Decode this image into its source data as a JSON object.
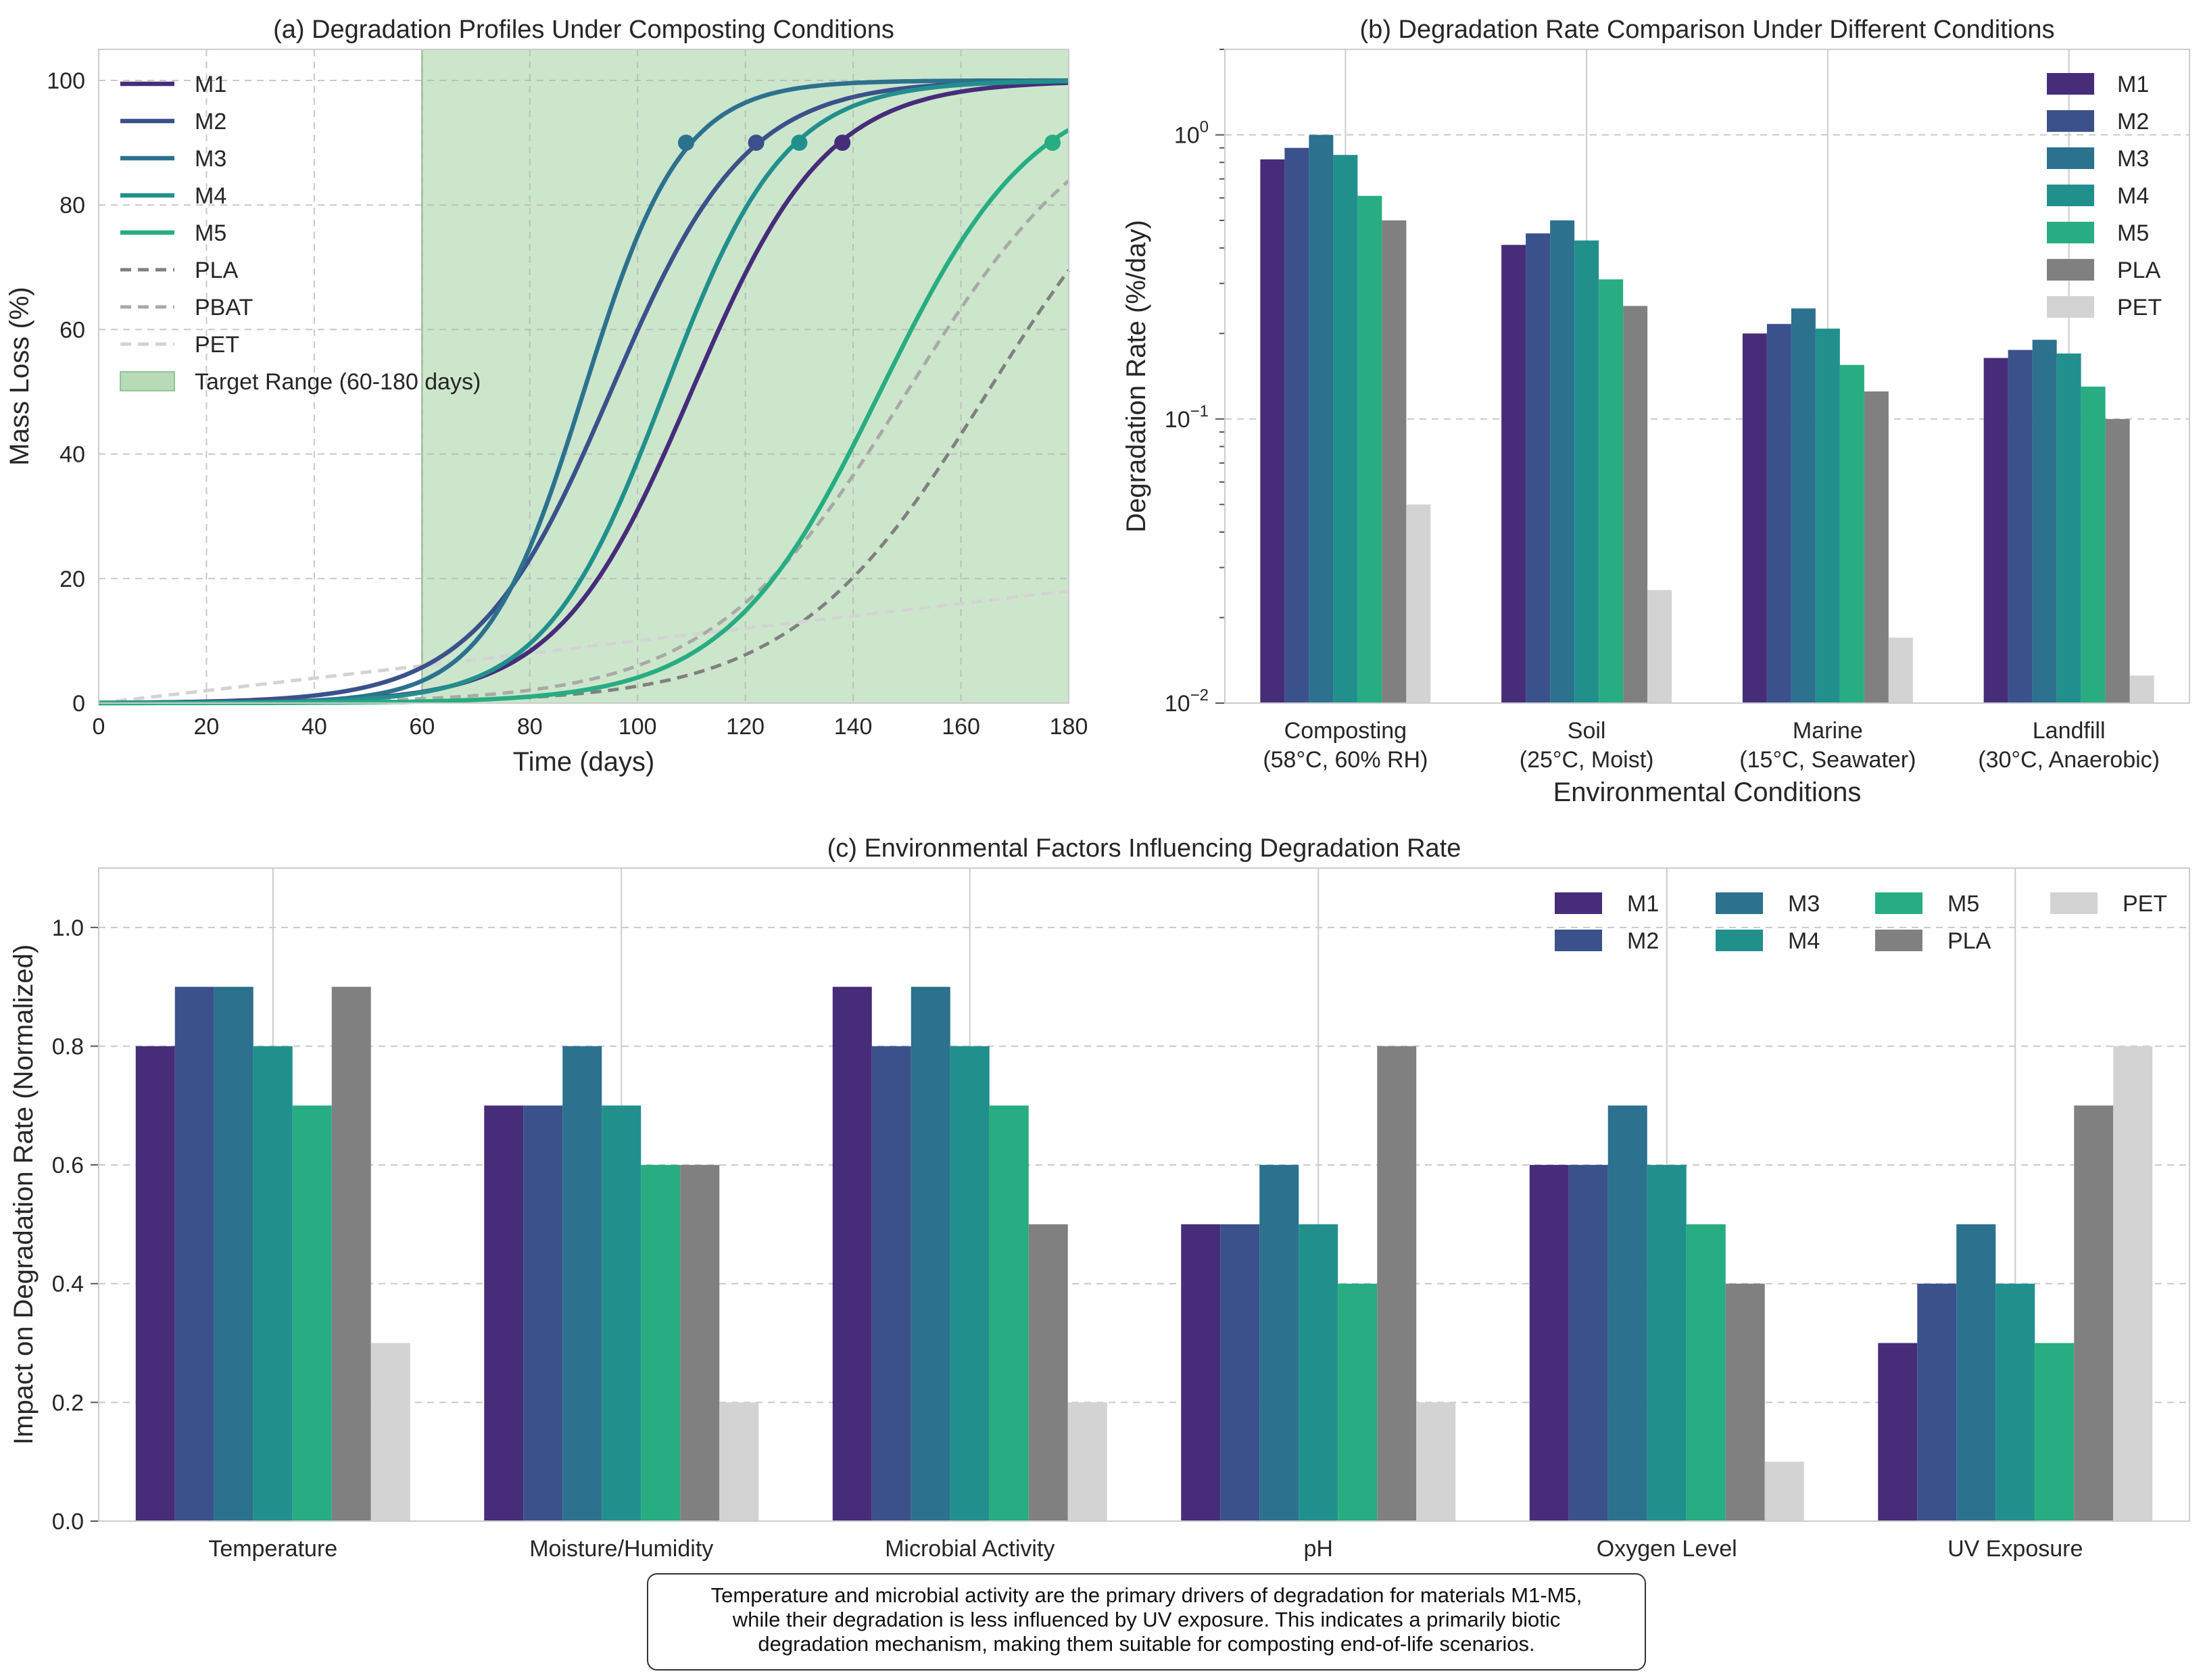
{
  "colors": {
    "M1": "#472c7a",
    "M2": "#3b518b",
    "M3": "#2c718e",
    "M4": "#21908d",
    "M5": "#27ad81",
    "PLA": "#808080",
    "PBAT": "#a9a9a9",
    "PET": "#d3d3d3",
    "target": "#b7dbb7"
  },
  "chart_data": [
    {
      "type": "line",
      "title": "(a) Degradation Profiles Under Composting Conditions",
      "xlabel": "Time (days)",
      "ylabel": "Mass Loss (%)",
      "xlim": [
        0,
        180
      ],
      "ylim": [
        0,
        105
      ],
      "xticks": [
        "0",
        "20",
        "40",
        "60",
        "80",
        "100",
        "120",
        "140",
        "160",
        "180"
      ],
      "yticks": [
        "0",
        "20",
        "40",
        "60",
        "80",
        "100"
      ],
      "target_range": {
        "from": 60,
        "to": 180,
        "label": "Target Range (60-180 days)"
      },
      "series": [
        {
          "name": "M1",
          "style": "solid",
          "model": "logistic",
          "midpoint": 110,
          "rate": 0.08,
          "marker": {
            "x": 138,
            "y": 90
          }
        },
        {
          "name": "M2",
          "style": "solid",
          "model": "logistic",
          "midpoint": 95,
          "rate": 0.08,
          "marker": {
            "x": 122,
            "y": 90
          }
        },
        {
          "name": "M3",
          "style": "solid",
          "model": "logistic",
          "midpoint": 90,
          "rate": 0.11,
          "marker": {
            "x": 109,
            "y": 90
          }
        },
        {
          "name": "M4",
          "style": "solid",
          "model": "logistic",
          "midpoint": 105,
          "rate": 0.09,
          "marker": {
            "x": 130,
            "y": 90
          }
        },
        {
          "name": "M5",
          "style": "solid",
          "model": "logistic",
          "midpoint": 145,
          "rate": 0.07,
          "marker": {
            "x": 177,
            "y": 90
          }
        },
        {
          "name": "PLA",
          "style": "dashed",
          "model": "logistic",
          "midpoint": 165,
          "rate": 0.055,
          "marker": null
        },
        {
          "name": "PBAT",
          "style": "dashed",
          "model": "logistic",
          "midpoint": 150,
          "rate": 0.055,
          "marker": null
        },
        {
          "name": "PET",
          "style": "dashed",
          "model": "linear",
          "end_value": 18,
          "marker": null
        }
      ]
    },
    {
      "type": "bar",
      "title": "(b) Degradation Rate Comparison Under Different Conditions",
      "xlabel": "Environmental Conditions",
      "ylabel": "Degradation Rate (%/day)",
      "yscale": "log",
      "ylim": [
        0.01,
        2
      ],
      "yticks": [
        {
          "base": "10",
          "exp": "0",
          "value": 1
        },
        {
          "base": "10",
          "exp": "−1",
          "value": 0.1
        },
        {
          "base": "10",
          "exp": "−2",
          "value": 0.01
        }
      ],
      "categories": [
        {
          "line1": "Composting",
          "line2": "(58°C, 60% RH)"
        },
        {
          "line1": "Soil",
          "line2": "(25°C, Moist)"
        },
        {
          "line1": "Marine",
          "line2": "(15°C, Seawater)"
        },
        {
          "line1": "Landfill",
          "line2": "(30°C, Anaerobic)"
        }
      ],
      "series": [
        {
          "name": "M1",
          "values": [
            0.82,
            0.41,
            0.2,
            0.164
          ]
        },
        {
          "name": "M2",
          "values": [
            0.9,
            0.45,
            0.216,
            0.175
          ]
        },
        {
          "name": "M3",
          "values": [
            1.0,
            0.5,
            0.245,
            0.19
          ]
        },
        {
          "name": "M4",
          "values": [
            0.85,
            0.425,
            0.208,
            0.17
          ]
        },
        {
          "name": "M5",
          "values": [
            0.61,
            0.31,
            0.155,
            0.13
          ]
        },
        {
          "name": "PLA",
          "values": [
            0.5,
            0.25,
            0.125,
            0.1
          ]
        },
        {
          "name": "PET",
          "values": [
            0.05,
            0.025,
            0.017,
            0.0125
          ]
        }
      ]
    },
    {
      "type": "bar",
      "title": "(c) Environmental Factors Influencing Degradation Rate",
      "xlabel": "",
      "ylabel": "Impact on Degradation Rate (Normalized)",
      "ylim": [
        0,
        1.1
      ],
      "yticks": [
        "0.0",
        "0.2",
        "0.4",
        "0.6",
        "0.8",
        "1.0"
      ],
      "categories": [
        "Temperature",
        "Moisture/Humidity",
        "Microbial Activity",
        "pH",
        "Oxygen Level",
        "UV Exposure"
      ],
      "series": [
        {
          "name": "M1",
          "values": [
            0.8,
            0.7,
            0.9,
            0.5,
            0.6,
            0.3
          ]
        },
        {
          "name": "M2",
          "values": [
            0.9,
            0.7,
            0.8,
            0.5,
            0.6,
            0.4
          ]
        },
        {
          "name": "M3",
          "values": [
            0.9,
            0.8,
            0.9,
            0.6,
            0.7,
            0.5
          ]
        },
        {
          "name": "M4",
          "values": [
            0.8,
            0.7,
            0.8,
            0.5,
            0.6,
            0.4
          ]
        },
        {
          "name": "M5",
          "values": [
            0.7,
            0.6,
            0.7,
            0.4,
            0.5,
            0.3
          ]
        },
        {
          "name": "PLA",
          "values": [
            0.9,
            0.6,
            0.5,
            0.8,
            0.4,
            0.7
          ]
        },
        {
          "name": "PET",
          "values": [
            0.3,
            0.2,
            0.2,
            0.2,
            0.1,
            0.8
          ]
        }
      ]
    }
  ],
  "annotation": {
    "lines": [
      "Temperature and microbial activity are the primary drivers of degradation for materials M1-M5,",
      "while their degradation is less influenced by UV exposure. This indicates a primarily biotic",
      "degradation mechanism, making them suitable for composting end-of-life scenarios."
    ]
  }
}
